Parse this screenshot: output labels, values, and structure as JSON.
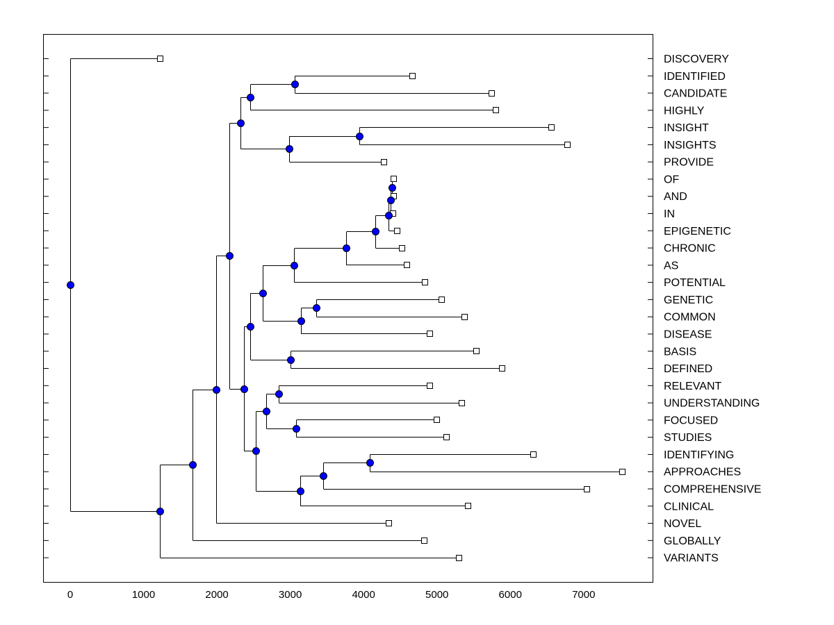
{
  "chart_data": {
    "type": "dendrogram",
    "orientation": "horizontal",
    "x_axis": {
      "ticks": [
        0,
        1000,
        2000,
        3000,
        4000,
        5000,
        6000,
        7000
      ],
      "range": [
        -360,
        7940
      ]
    },
    "colors": {
      "node_fill": "#0000ff",
      "leaf_fill": "#ffffff",
      "line": "#000000"
    },
    "leaves": [
      {
        "label": "DISCOVERY",
        "value": 1220
      },
      {
        "label": "IDENTIFIED",
        "value": 4660
      },
      {
        "label": "CANDIDATE",
        "value": 5740
      },
      {
        "label": "HIGHLY",
        "value": 5800
      },
      {
        "label": "INSIGHT",
        "value": 6560
      },
      {
        "label": "INSIGHTS",
        "value": 6770
      },
      {
        "label": "PROVIDE",
        "value": 4270
      },
      {
        "label": "OF",
        "value": 4410
      },
      {
        "label": "AND",
        "value": 4410
      },
      {
        "label": "IN",
        "value": 4400
      },
      {
        "label": "EPIGENETIC",
        "value": 4450
      },
      {
        "label": "CHRONIC",
        "value": 4520
      },
      {
        "label": "AS",
        "value": 4590
      },
      {
        "label": "POTENTIAL",
        "value": 4830
      },
      {
        "label": "GENETIC",
        "value": 5060
      },
      {
        "label": "COMMON",
        "value": 5370
      },
      {
        "label": "DISEASE",
        "value": 4900
      },
      {
        "label": "BASIS",
        "value": 5530
      },
      {
        "label": "DEFINED",
        "value": 5880
      },
      {
        "label": "RELEVANT",
        "value": 4900
      },
      {
        "label": "UNDERSTANDING",
        "value": 5330
      },
      {
        "label": "FOCUSED",
        "value": 4990
      },
      {
        "label": "STUDIES",
        "value": 5130
      },
      {
        "label": "IDENTIFYING",
        "value": 6310
      },
      {
        "label": "APPROACHES",
        "value": 7520
      },
      {
        "label": "COMPREHENSIVE",
        "value": 7040
      },
      {
        "label": "CLINICAL",
        "value": 5420
      },
      {
        "label": "NOVEL",
        "value": 4340
      },
      {
        "label": "GLOBALLY",
        "value": 4820
      },
      {
        "label": "VARIANTS",
        "value": 5300
      }
    ],
    "merges": [
      {
        "id": "n1",
        "value": 3060,
        "children": [
          "L1",
          "L2"
        ]
      },
      {
        "id": "n2",
        "value": 2450,
        "children": [
          "n1",
          "L3"
        ]
      },
      {
        "id": "n3",
        "value": 3940,
        "children": [
          "L4",
          "L5"
        ]
      },
      {
        "id": "n4",
        "value": 2980,
        "children": [
          "n3",
          "L6"
        ]
      },
      {
        "id": "n5",
        "value": 2320,
        "children": [
          "n2",
          "n4"
        ]
      },
      {
        "id": "n6",
        "value": 4390,
        "children": [
          "L7",
          "L8"
        ]
      },
      {
        "id": "n7",
        "value": 4370,
        "children": [
          "n6",
          "L9"
        ]
      },
      {
        "id": "n8",
        "value": 4340,
        "children": [
          "n7",
          "L10"
        ]
      },
      {
        "id": "n9",
        "value": 4160,
        "children": [
          "n8",
          "L11"
        ]
      },
      {
        "id": "n10",
        "value": 3760,
        "children": [
          "n9",
          "L12"
        ]
      },
      {
        "id": "n11",
        "value": 3050,
        "children": [
          "n10",
          "L13"
        ]
      },
      {
        "id": "n12",
        "value": 3350,
        "children": [
          "L14",
          "L15"
        ]
      },
      {
        "id": "n13",
        "value": 3150,
        "children": [
          "n12",
          "L16"
        ]
      },
      {
        "id": "n14",
        "value": 2620,
        "children": [
          "n11",
          "n13"
        ]
      },
      {
        "id": "n15",
        "value": 3000,
        "children": [
          "L17",
          "L18"
        ]
      },
      {
        "id": "n16",
        "value": 2450,
        "children": [
          "n14",
          "n15"
        ]
      },
      {
        "id": "n17",
        "value": 2840,
        "children": [
          "L19",
          "L20"
        ]
      },
      {
        "id": "n18",
        "value": 3080,
        "children": [
          "L21",
          "L22"
        ]
      },
      {
        "id": "n19",
        "value": 2670,
        "children": [
          "n17",
          "n18"
        ]
      },
      {
        "id": "n20",
        "value": 4080,
        "children": [
          "L23",
          "L24"
        ]
      },
      {
        "id": "n21",
        "value": 3450,
        "children": [
          "n20",
          "L25"
        ]
      },
      {
        "id": "n22",
        "value": 3140,
        "children": [
          "n21",
          "L26"
        ]
      },
      {
        "id": "n23",
        "value": 2530,
        "children": [
          "n19",
          "n22"
        ]
      },
      {
        "id": "n24",
        "value": 2370,
        "children": [
          "n16",
          "n23"
        ]
      },
      {
        "id": "n25",
        "value": 2170,
        "children": [
          "n5",
          "n24"
        ]
      },
      {
        "id": "n26",
        "value": 1990,
        "children": [
          "n25",
          "L27"
        ]
      },
      {
        "id": "n27",
        "value": 1670,
        "children": [
          "n26",
          "L28"
        ]
      },
      {
        "id": "n28",
        "value": 1220,
        "children": [
          "n27",
          "L29"
        ]
      },
      {
        "id": "n29",
        "value": 0,
        "children": [
          "L0",
          "n28"
        ]
      }
    ]
  }
}
